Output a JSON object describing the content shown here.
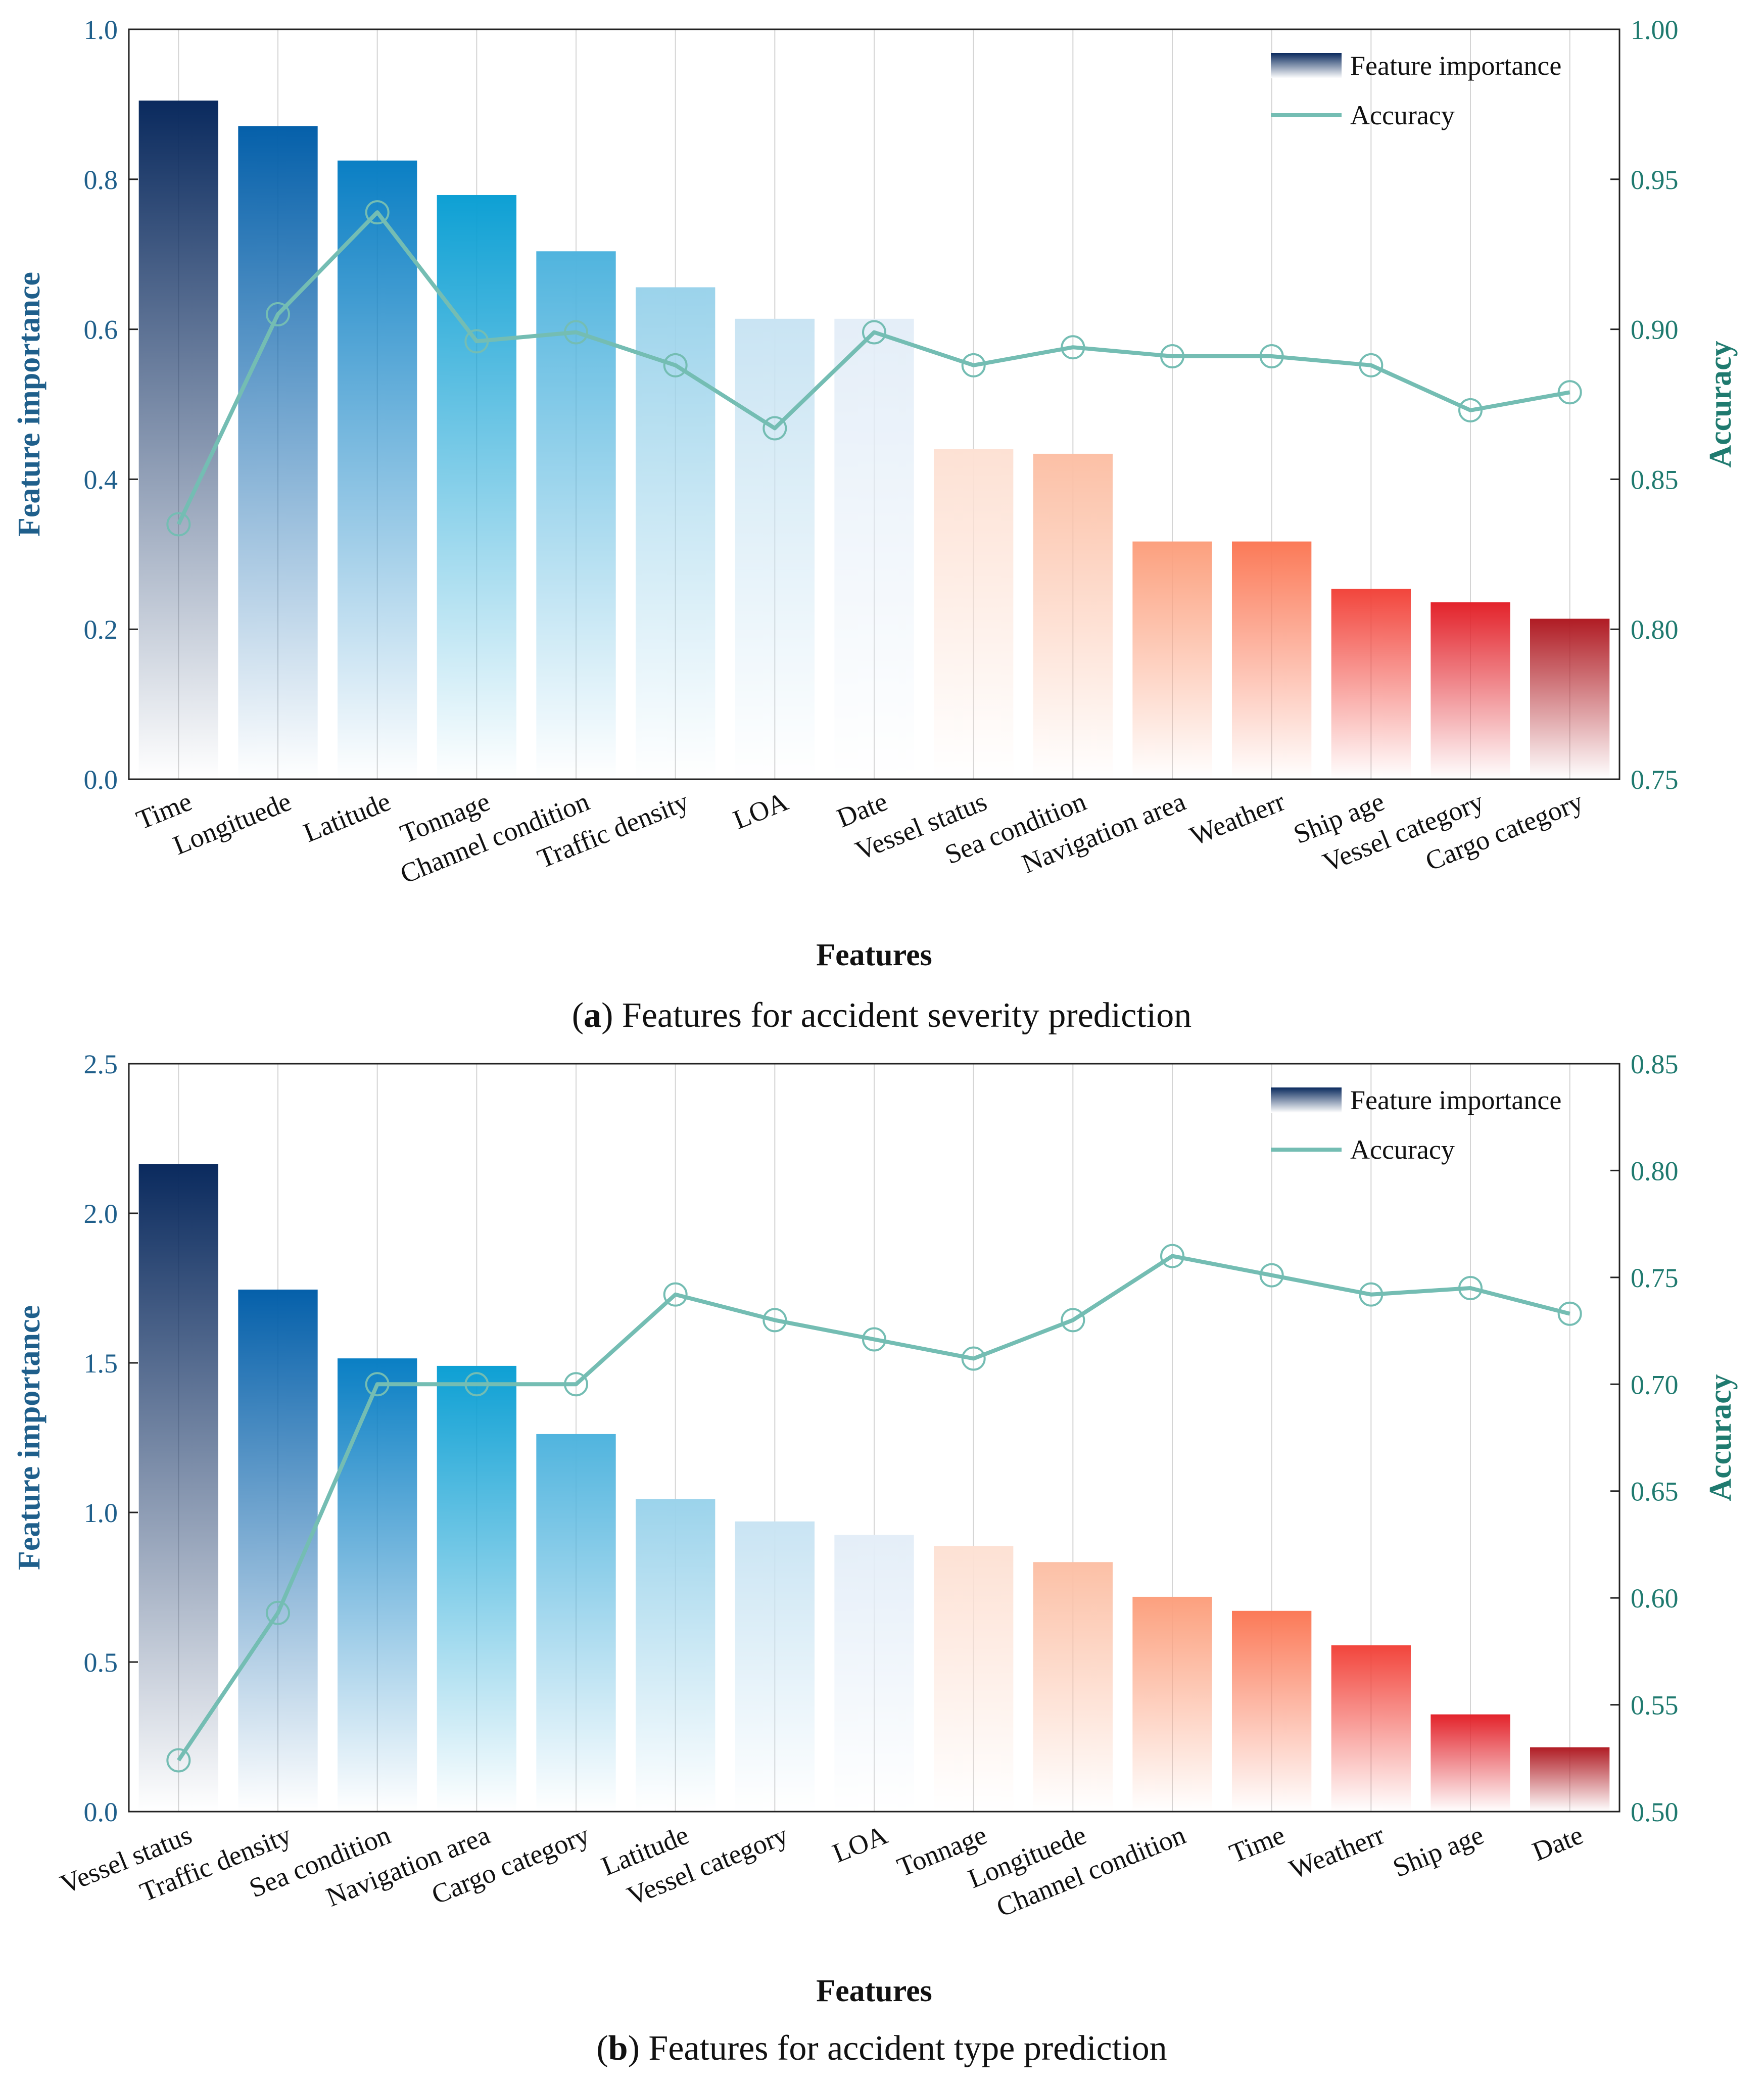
{
  "figure": {
    "panels": [
      {
        "caption_letter": "a",
        "caption_text": "Features for accident severity prediction",
        "legend": {
          "bar_label": "Feature importance",
          "line_label": "Accuracy"
        }
      },
      {
        "caption_letter": "b",
        "caption_text": "Features for accident type prediction",
        "legend": {
          "bar_label": "Feature importance",
          "line_label": "Accuracy"
        }
      }
    ]
  },
  "colors": {
    "left_axis": "#1f5f8b",
    "right_axis": "#1f7a6f",
    "line": "#74bdb3",
    "bar_gradient": [
      "#0a2a5e",
      "#0560aa",
      "#0a7fc4",
      "#0ea0d4",
      "#50b4de",
      "#9bd3eb",
      "#c9e4f3",
      "#e4eef8",
      "#fde1d4",
      "#fcc0a6",
      "#fca07e",
      "#fb7a58",
      "#f2453c",
      "#e3232b",
      "#b01c24"
    ]
  },
  "chart_data": [
    {
      "type": "bar",
      "title": "(a) Features for accident severity prediction",
      "xlabel": "Features",
      "ylabel": "Feature importance",
      "y2label": "Accuracy",
      "ylim": [
        0.0,
        1.0
      ],
      "y2lim": [
        0.75,
        1.0
      ],
      "yticks": [
        "0.0",
        "0.2",
        "0.4",
        "0.6",
        "0.8",
        "1.0"
      ],
      "y2ticks": [
        "0.75",
        "0.80",
        "0.85",
        "0.90",
        "0.95",
        "1.00"
      ],
      "legend_position": "top-right",
      "categories": [
        "Time",
        "Longituede",
        "Latitude",
        "Tonnage",
        "Channel condition",
        "Traffic density",
        "LOA",
        "Date",
        "Vessel status",
        "Sea condition",
        "Navigation area",
        "Weatherr",
        "Ship age",
        "Vessel category",
        "Cargo category"
      ],
      "series": [
        {
          "name": "Feature importance",
          "kind": "bar",
          "axis": "left",
          "values": [
            0.905,
            0.871,
            0.825,
            0.779,
            0.704,
            0.656,
            0.614,
            0.614,
            0.44,
            0.434,
            0.317,
            0.317,
            0.254,
            0.236,
            0.214
          ]
        },
        {
          "name": "Accuracy",
          "kind": "line",
          "axis": "right",
          "values": [
            0.835,
            0.905,
            0.939,
            0.896,
            0.899,
            0.888,
            0.867,
            0.899,
            0.888,
            0.894,
            0.891,
            0.891,
            0.888,
            0.873,
            0.879
          ]
        }
      ]
    },
    {
      "type": "bar",
      "title": "(b) Features for accident type prediction",
      "xlabel": "Features",
      "ylabel": "Feature importance",
      "y2label": "Accuracy",
      "ylim": [
        0.0,
        2.5
      ],
      "y2lim": [
        0.5,
        0.85
      ],
      "yticks": [
        "0.0",
        "0.5",
        "1.0",
        "1.5",
        "2.0",
        "2.5"
      ],
      "y2ticks": [
        "0.50",
        "0.55",
        "0.60",
        "0.65",
        "0.70",
        "0.75",
        "0.80",
        "0.85"
      ],
      "legend_position": "top-right",
      "categories": [
        "Vessel status",
        "Traffic density",
        "Sea condition",
        "Navigation area",
        "Cargo category",
        "Latitude",
        "Vessel category",
        "LOA",
        "Tonnage",
        "Longituede",
        "Channel condition",
        "Time",
        "Weatherr",
        "Ship age",
        "Date"
      ],
      "series": [
        {
          "name": "Feature importance",
          "kind": "bar",
          "axis": "left",
          "values": [
            2.165,
            1.745,
            1.515,
            1.49,
            1.262,
            1.045,
            0.97,
            0.925,
            0.888,
            0.834,
            0.718,
            0.671,
            0.556,
            0.325,
            0.215
          ]
        },
        {
          "name": "Accuracy",
          "kind": "line",
          "axis": "right",
          "values": [
            0.524,
            0.593,
            0.7,
            0.7,
            0.7,
            0.742,
            0.73,
            0.721,
            0.712,
            0.73,
            0.76,
            0.751,
            0.742,
            0.745,
            0.733
          ]
        }
      ]
    }
  ]
}
